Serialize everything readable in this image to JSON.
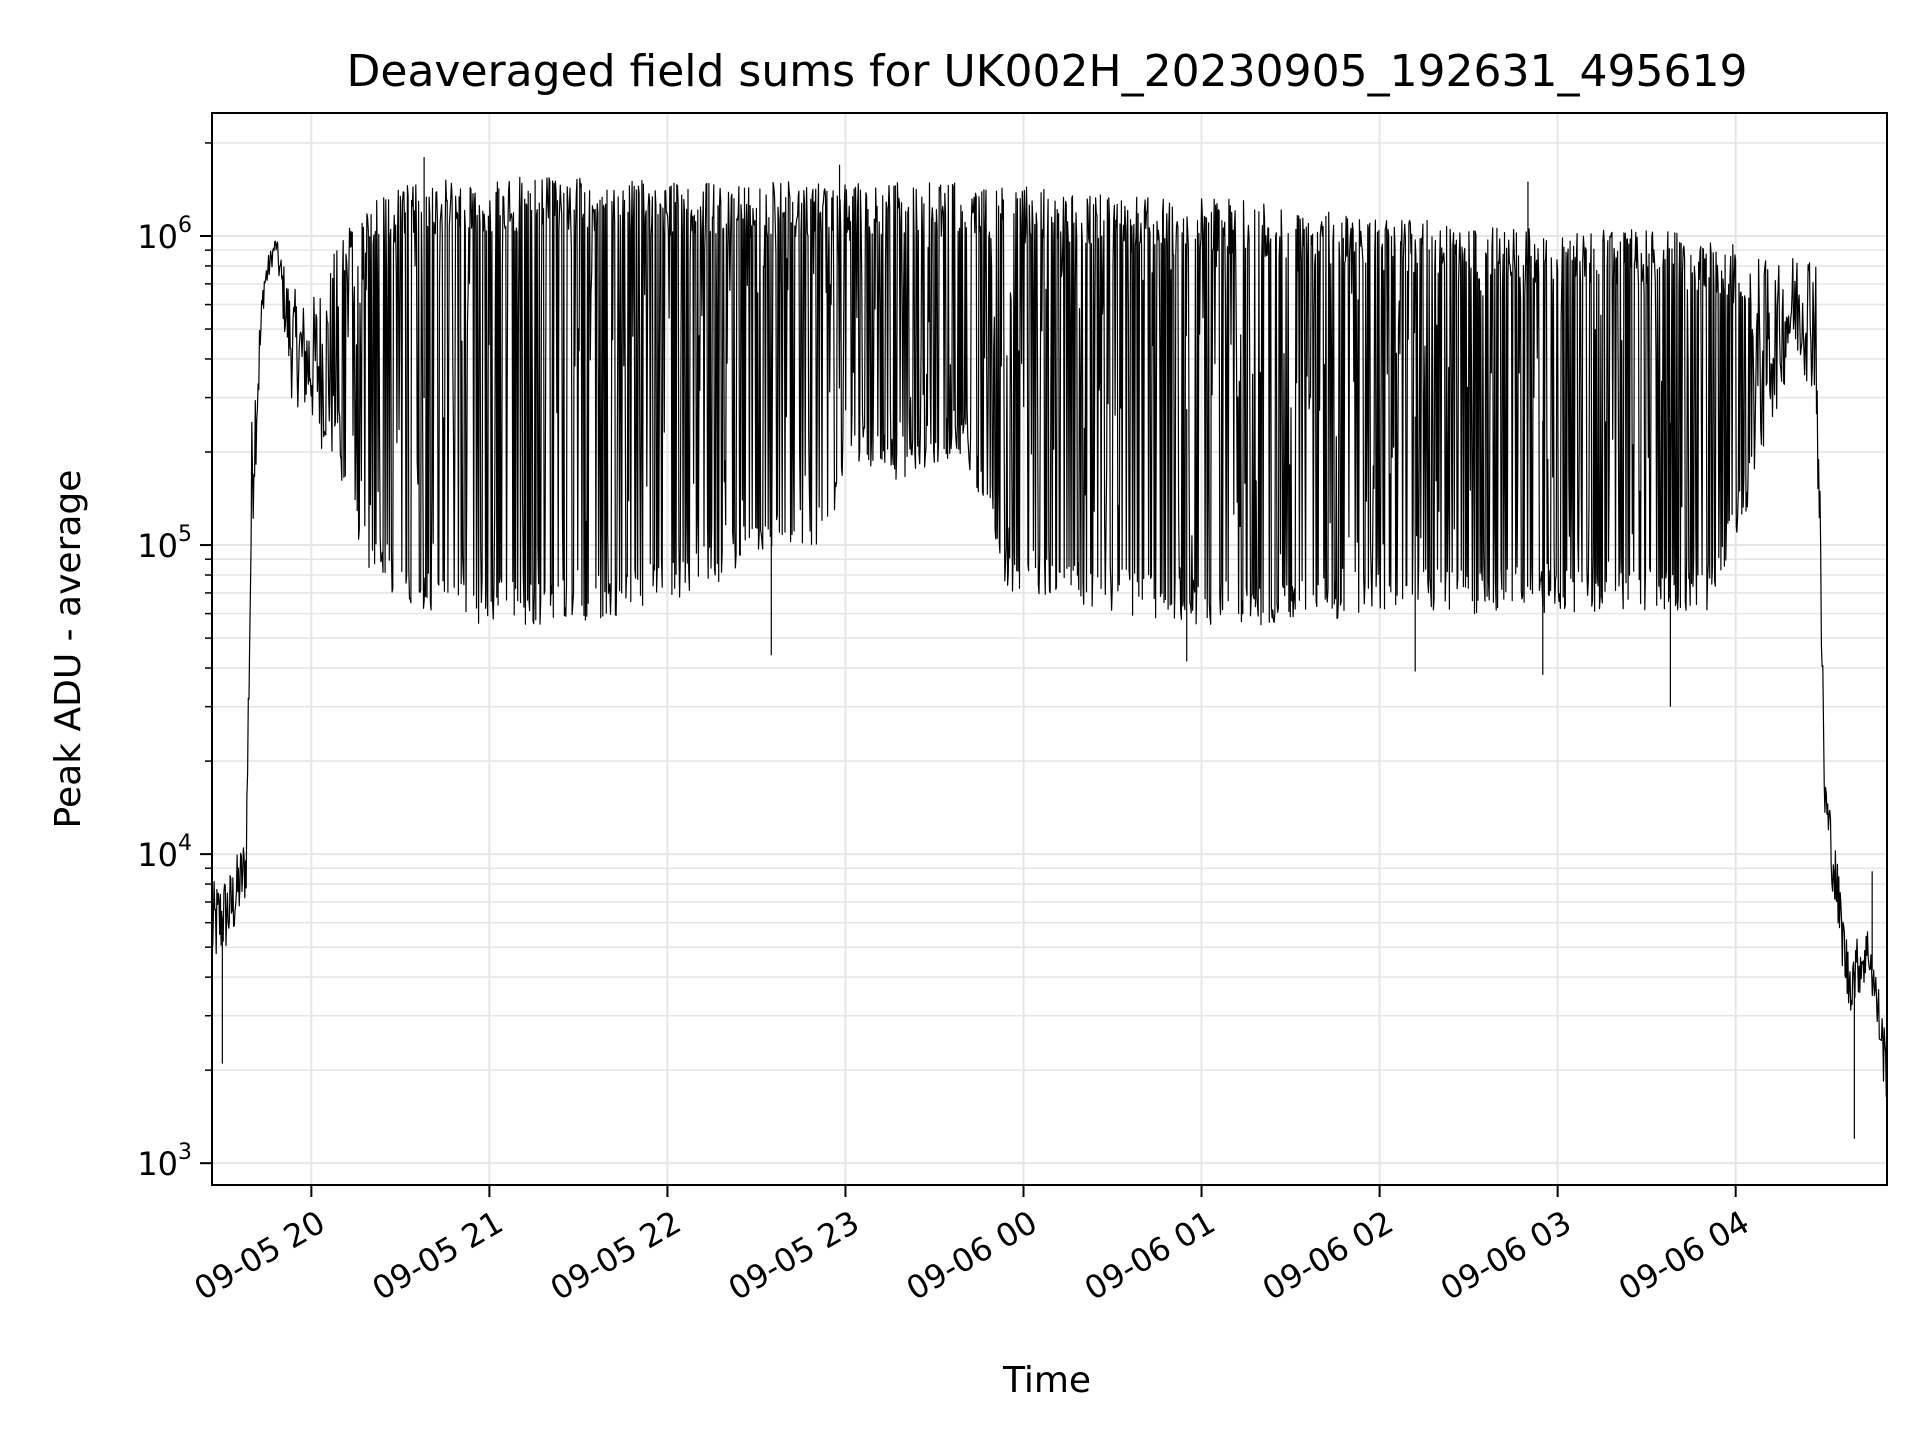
{
  "chart_data": {
    "type": "line",
    "title": "Deaveraged field sums for UK002H_20230905_192631_495619",
    "xlabel": "Time",
    "ylabel": "Peak ADU - average",
    "yscale": "log",
    "ylim": [
      850,
      2500000
    ],
    "xlim": [
      "2023-09-05T19:26:31",
      "2023-09-06T04:51:00"
    ],
    "grid": true,
    "line_color": "#000000",
    "x_ticks": [
      {
        "time": "2023-09-05T20:00",
        "label": "09-05 20"
      },
      {
        "time": "2023-09-05T21:00",
        "label": "09-05 21"
      },
      {
        "time": "2023-09-05T22:00",
        "label": "09-05 22"
      },
      {
        "time": "2023-09-05T23:00",
        "label": "09-05 23"
      },
      {
        "time": "2023-09-06T00:00",
        "label": "09-06 00"
      },
      {
        "time": "2023-09-06T01:00",
        "label": "09-06 01"
      },
      {
        "time": "2023-09-06T02:00",
        "label": "09-06 02"
      },
      {
        "time": "2023-09-06T03:00",
        "label": "09-06 03"
      },
      {
        "time": "2023-09-06T04:00",
        "label": "09-06 04"
      }
    ],
    "y_ticks": [
      {
        "value": 1000,
        "base": "10",
        "exp": "3"
      },
      {
        "value": 10000,
        "base": "10",
        "exp": "4"
      },
      {
        "value": 100000,
        "base": "10",
        "exp": "5"
      },
      {
        "value": 1000000,
        "base": "10",
        "exp": "6"
      }
    ],
    "envelope": {
      "time": [
        "2023-09-05T19:26",
        "2023-09-05T19:33",
        "2023-09-05T19:38",
        "2023-09-05T19:40",
        "2023-09-05T19:44",
        "2023-09-05T19:48",
        "2023-09-05T19:53",
        "2023-09-05T19:59",
        "2023-09-05T20:10",
        "2023-09-05T20:20",
        "2023-09-05T20:35",
        "2023-09-05T21:00",
        "2023-09-05T21:30",
        "2023-09-05T22:00",
        "2023-09-05T22:30",
        "2023-09-05T22:55",
        "2023-09-05T23:00",
        "2023-09-05T23:20",
        "2023-09-05T23:40",
        "2023-09-05T23:55",
        "2023-09-06T00:30",
        "2023-09-06T01:00",
        "2023-09-06T01:30",
        "2023-09-06T02:00",
        "2023-09-06T02:30",
        "2023-09-06T03:00",
        "2023-09-06T03:30",
        "2023-09-06T03:50",
        "2023-09-06T04:05",
        "2023-09-06T04:15",
        "2023-09-06T04:20",
        "2023-09-06T04:27",
        "2023-09-06T04:30",
        "2023-09-06T04:38",
        "2023-09-06T04:45",
        "2023-09-06T04:51"
      ],
      "low": [
        4000,
        5000,
        7000,
        100000,
        600000,
        900000,
        300000,
        250000,
        150000,
        80000,
        60000,
        55000,
        55000,
        65000,
        85000,
        100000,
        180000,
        160000,
        200000,
        70000,
        60000,
        55000,
        55000,
        60000,
        60000,
        60000,
        60000,
        60000,
        140000,
        300000,
        400000,
        300000,
        12000,
        3000,
        4000,
        1500
      ],
      "high": [
        8000,
        9000,
        12000,
        300000,
        800000,
        1000000,
        700000,
        600000,
        1000000,
        1300000,
        1500000,
        1550000,
        1550000,
        1500000,
        1500000,
        1500000,
        1500000,
        1500000,
        1500000,
        1450000,
        1400000,
        1350000,
        1250000,
        1150000,
        1100000,
        1050000,
        1050000,
        1000000,
        900000,
        800000,
        900000,
        1000000,
        20000,
        5000,
        6000,
        2500
      ]
    },
    "outliers": [
      {
        "time": "2023-09-05T19:30",
        "value": 2100
      },
      {
        "time": "2023-09-05T20:38",
        "value": 1800000
      },
      {
        "time": "2023-09-05T22:58",
        "value": 1700000
      },
      {
        "time": "2023-09-05T22:35",
        "value": 44000
      },
      {
        "time": "2023-09-06T00:55",
        "value": 42000
      },
      {
        "time": "2023-09-06T02:12",
        "value": 39000
      },
      {
        "time": "2023-09-06T02:55",
        "value": 38000
      },
      {
        "time": "2023-09-06T03:38",
        "value": 30000
      },
      {
        "time": "2023-09-06T02:50",
        "value": 1500000
      },
      {
        "time": "2023-09-06T04:40",
        "value": 1200
      },
      {
        "time": "2023-09-06T04:46",
        "value": 8800
      }
    ]
  }
}
